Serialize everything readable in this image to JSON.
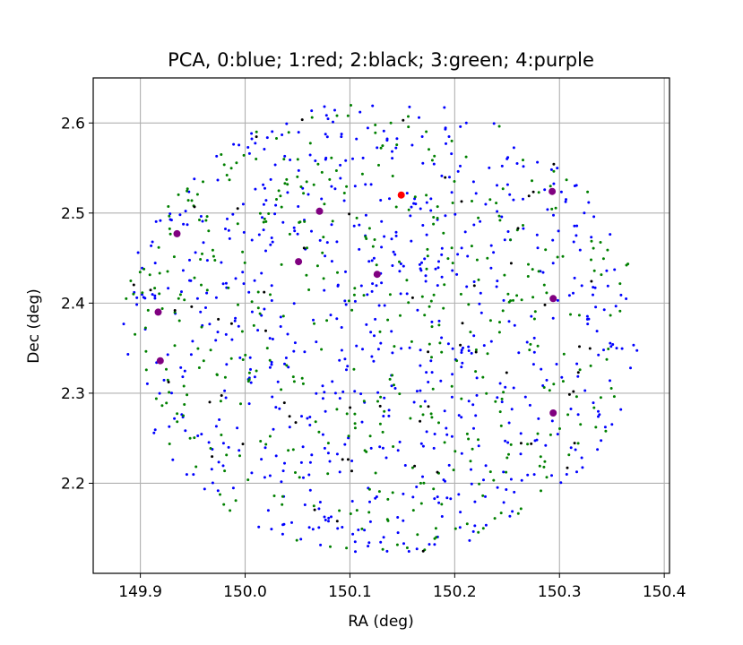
{
  "chart_data": {
    "type": "scatter",
    "title": "PCA, 0:blue; 1:red; 2:black; 3:green; 4:purple",
    "xlabel": "RA (deg)",
    "ylabel": "Dec (deg)",
    "xlim": [
      149.855,
      150.405
    ],
    "ylim": [
      2.1,
      2.65
    ],
    "xticks": [
      149.9,
      150.0,
      150.1,
      150.2,
      150.3,
      150.4
    ],
    "xtick_labels": [
      "149.9",
      "150.0",
      "150.1",
      "150.2",
      "150.3",
      "150.4"
    ],
    "yticks": [
      2.2,
      2.3,
      2.4,
      2.5,
      2.6
    ],
    "ytick_labels": [
      "2.2",
      "2.3",
      "2.4",
      "2.5",
      "2.6"
    ],
    "grid": true,
    "legend": "none",
    "field": {
      "center": [
        150.13,
        2.373
      ],
      "ra_radius": 0.246,
      "dec_radius": 0.252
    },
    "series": [
      {
        "colour": "#0000ff",
        "marker_size": "small",
        "count_estimate": 700
      },
      {
        "colour": "#ff0000",
        "marker_size": "large",
        "points": [
          [
            150.149,
            2.52
          ]
        ]
      },
      {
        "colour": "#000000",
        "marker_size": "small",
        "count_estimate": 60
      },
      {
        "colour": "#008000",
        "marker_size": "small",
        "count_estimate": 450
      },
      {
        "colour": "#800080",
        "marker_size": "large",
        "points": [
          [
            149.935,
            2.477
          ],
          [
            149.917,
            2.39
          ],
          [
            149.919,
            2.336
          ],
          [
            150.071,
            2.502
          ],
          [
            150.051,
            2.446
          ],
          [
            150.126,
            2.432
          ],
          [
            150.293,
            2.524
          ],
          [
            150.294,
            2.405
          ],
          [
            150.294,
            2.278
          ]
        ]
      }
    ]
  }
}
